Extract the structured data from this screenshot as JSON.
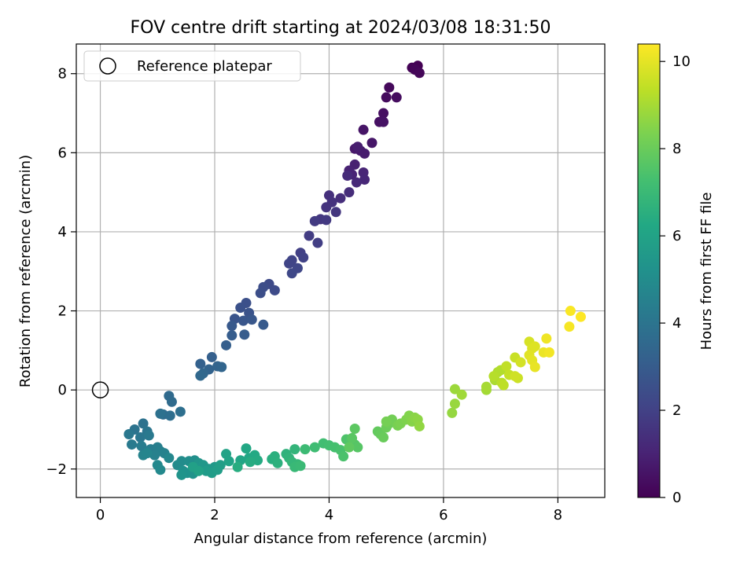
{
  "chart_data": {
    "type": "scatter",
    "title": "FOV centre drift starting at 2024/03/08 18:31:50",
    "xlabel": "Angular distance from reference (arcmin)",
    "ylabel": "Rotation from reference (arcmin)",
    "xlim": [
      -0.42,
      8.82
    ],
    "ylim": [
      -2.72,
      8.75
    ],
    "xticks": [
      0,
      2,
      4,
      6,
      8
    ],
    "yticks": [
      -2,
      0,
      2,
      4,
      6,
      8
    ],
    "grid": true,
    "legend": {
      "position": "top-left",
      "entries": [
        {
          "label": "Reference platepar",
          "marker": "open-circle"
        }
      ]
    },
    "reference_point": {
      "x": 0,
      "y": 0
    },
    "colorbar": {
      "label": "Hours from first FF file",
      "range": [
        0,
        10.4
      ],
      "ticks": [
        0,
        2,
        4,
        6,
        8,
        10
      ],
      "colormap": "viridis"
    },
    "series": [
      {
        "points": [
          [
            5.55,
            8.2
          ],
          [
            5.45,
            8.15
          ],
          [
            5.5,
            8.1
          ],
          [
            5.58,
            8.02
          ],
          [
            5.05,
            7.65
          ],
          [
            5.0,
            7.4
          ],
          [
            5.18,
            7.4
          ],
          [
            4.95,
            7.0
          ],
          [
            4.88,
            6.78
          ],
          [
            4.95,
            6.78
          ],
          [
            4.6,
            6.58
          ],
          [
            4.75,
            6.25
          ],
          [
            4.45,
            6.1
          ],
          [
            4.55,
            6.05
          ],
          [
            4.62,
            5.98
          ],
          [
            4.5,
            6.15
          ],
          [
            4.45,
            5.7
          ],
          [
            4.35,
            5.55
          ],
          [
            4.4,
            5.45
          ],
          [
            4.6,
            5.5
          ],
          [
            4.62,
            5.32
          ],
          [
            4.48,
            5.25
          ],
          [
            4.32,
            5.42
          ],
          [
            4.35,
            5.0
          ],
          [
            4.2,
            4.85
          ],
          [
            4.0,
            4.92
          ],
          [
            4.05,
            4.75
          ],
          [
            3.95,
            4.62
          ],
          [
            4.12,
            4.5
          ],
          [
            3.85,
            4.32
          ],
          [
            3.95,
            4.3
          ],
          [
            3.75,
            4.27
          ],
          [
            3.65,
            3.9
          ],
          [
            3.8,
            3.72
          ],
          [
            3.5,
            3.47
          ],
          [
            3.55,
            3.35
          ],
          [
            3.35,
            3.28
          ],
          [
            3.3,
            3.2
          ],
          [
            3.45,
            3.08
          ],
          [
            3.35,
            2.95
          ],
          [
            2.95,
            2.68
          ],
          [
            3.05,
            2.52
          ],
          [
            2.85,
            2.6
          ],
          [
            2.8,
            2.45
          ],
          [
            2.55,
            2.2
          ],
          [
            2.45,
            2.08
          ],
          [
            2.6,
            1.95
          ],
          [
            2.35,
            1.8
          ],
          [
            2.5,
            1.75
          ],
          [
            2.65,
            1.78
          ],
          [
            2.3,
            1.62
          ],
          [
            2.85,
            1.65
          ],
          [
            2.52,
            1.4
          ],
          [
            2.3,
            1.38
          ],
          [
            2.2,
            1.13
          ],
          [
            1.95,
            0.83
          ],
          [
            1.75,
            0.66
          ],
          [
            1.9,
            0.52
          ],
          [
            2.05,
            0.6
          ],
          [
            2.12,
            0.58
          ],
          [
            1.8,
            0.42
          ],
          [
            1.75,
            0.36
          ],
          [
            1.2,
            -0.15
          ],
          [
            1.25,
            -0.3
          ],
          [
            1.1,
            -0.62
          ],
          [
            1.22,
            -0.65
          ],
          [
            1.4,
            -0.55
          ],
          [
            1.05,
            -0.6
          ],
          [
            0.75,
            -0.85
          ],
          [
            0.6,
            -1.0
          ],
          [
            0.82,
            -1.05
          ],
          [
            0.7,
            -1.2
          ],
          [
            0.5,
            -1.12
          ],
          [
            0.85,
            -1.15
          ],
          [
            0.55,
            -1.38
          ],
          [
            0.72,
            -1.42
          ],
          [
            0.88,
            -1.5
          ],
          [
            1.0,
            -1.45
          ],
          [
            1.05,
            -1.55
          ],
          [
            0.95,
            -1.65
          ],
          [
            1.12,
            -1.6
          ],
          [
            0.75,
            -1.65
          ],
          [
            0.82,
            -1.6
          ],
          [
            1.2,
            -1.72
          ],
          [
            1.0,
            -1.9
          ],
          [
            1.05,
            -2.02
          ],
          [
            1.35,
            -1.9
          ],
          [
            1.42,
            -1.8
          ],
          [
            1.55,
            -1.8
          ],
          [
            1.65,
            -1.78
          ],
          [
            1.45,
            -2.05
          ],
          [
            1.52,
            -2.1
          ],
          [
            1.62,
            -2.12
          ],
          [
            1.42,
            -2.15
          ],
          [
            1.72,
            -1.85
          ],
          [
            1.8,
            -1.9
          ],
          [
            1.9,
            -2.0
          ],
          [
            2.0,
            -1.95
          ],
          [
            1.85,
            -2.05
          ],
          [
            1.95,
            -2.1
          ],
          [
            2.05,
            -2.02
          ],
          [
            2.1,
            -1.9
          ],
          [
            1.62,
            -1.95
          ],
          [
            1.72,
            -2.05
          ],
          [
            2.2,
            -1.62
          ],
          [
            2.25,
            -1.8
          ],
          [
            2.45,
            -1.78
          ],
          [
            2.6,
            -1.72
          ],
          [
            2.55,
            -1.48
          ],
          [
            2.7,
            -1.65
          ],
          [
            2.75,
            -1.78
          ],
          [
            2.62,
            -1.82
          ],
          [
            2.4,
            -1.95
          ],
          [
            3.0,
            -1.75
          ],
          [
            3.05,
            -1.68
          ],
          [
            3.1,
            -1.85
          ],
          [
            3.25,
            -1.62
          ],
          [
            3.3,
            -1.72
          ],
          [
            3.4,
            -1.5
          ],
          [
            3.35,
            -1.82
          ],
          [
            3.45,
            -1.88
          ],
          [
            3.4,
            -1.95
          ],
          [
            3.5,
            -1.92
          ],
          [
            3.58,
            -1.5
          ],
          [
            3.75,
            -1.45
          ],
          [
            3.9,
            -1.35
          ],
          [
            4.0,
            -1.4
          ],
          [
            4.1,
            -1.45
          ],
          [
            4.2,
            -1.52
          ],
          [
            4.25,
            -1.68
          ],
          [
            4.3,
            -1.25
          ],
          [
            4.38,
            -1.3
          ],
          [
            4.45,
            -1.38
          ],
          [
            4.5,
            -1.45
          ],
          [
            4.4,
            -1.22
          ],
          [
            4.45,
            -0.98
          ],
          [
            4.35,
            -1.45
          ],
          [
            4.85,
            -1.05
          ],
          [
            4.9,
            -1.12
          ],
          [
            4.95,
            -1.2
          ],
          [
            5.0,
            -0.95
          ],
          [
            5.05,
            -0.85
          ],
          [
            5.1,
            -0.75
          ],
          [
            5.0,
            -0.8
          ],
          [
            5.2,
            -0.9
          ],
          [
            5.25,
            -0.85
          ],
          [
            5.35,
            -0.75
          ],
          [
            5.4,
            -0.65
          ],
          [
            5.45,
            -0.8
          ],
          [
            5.5,
            -0.7
          ],
          [
            5.55,
            -0.75
          ],
          [
            5.58,
            -0.92
          ],
          [
            6.15,
            -0.58
          ],
          [
            6.2,
            -0.35
          ],
          [
            6.2,
            0.02
          ],
          [
            6.32,
            -0.12
          ],
          [
            6.75,
            0.0
          ],
          [
            6.75,
            0.08
          ],
          [
            6.9,
            0.25
          ],
          [
            6.95,
            0.45
          ],
          [
            7.0,
            0.5
          ],
          [
            6.88,
            0.35
          ],
          [
            7.02,
            0.18
          ],
          [
            7.05,
            0.12
          ],
          [
            7.1,
            0.6
          ],
          [
            7.15,
            0.38
          ],
          [
            7.25,
            0.82
          ],
          [
            7.3,
            0.3
          ],
          [
            7.25,
            0.35
          ],
          [
            7.35,
            0.7
          ],
          [
            7.5,
            1.22
          ],
          [
            7.55,
            1.05
          ],
          [
            7.6,
            1.1
          ],
          [
            7.5,
            0.88
          ],
          [
            7.55,
            0.75
          ],
          [
            7.6,
            0.58
          ],
          [
            7.75,
            0.95
          ],
          [
            7.8,
            1.3
          ],
          [
            7.85,
            0.95
          ],
          [
            8.2,
            1.6
          ],
          [
            8.22,
            2.0
          ],
          [
            8.4,
            1.85
          ]
        ]
      }
    ]
  }
}
